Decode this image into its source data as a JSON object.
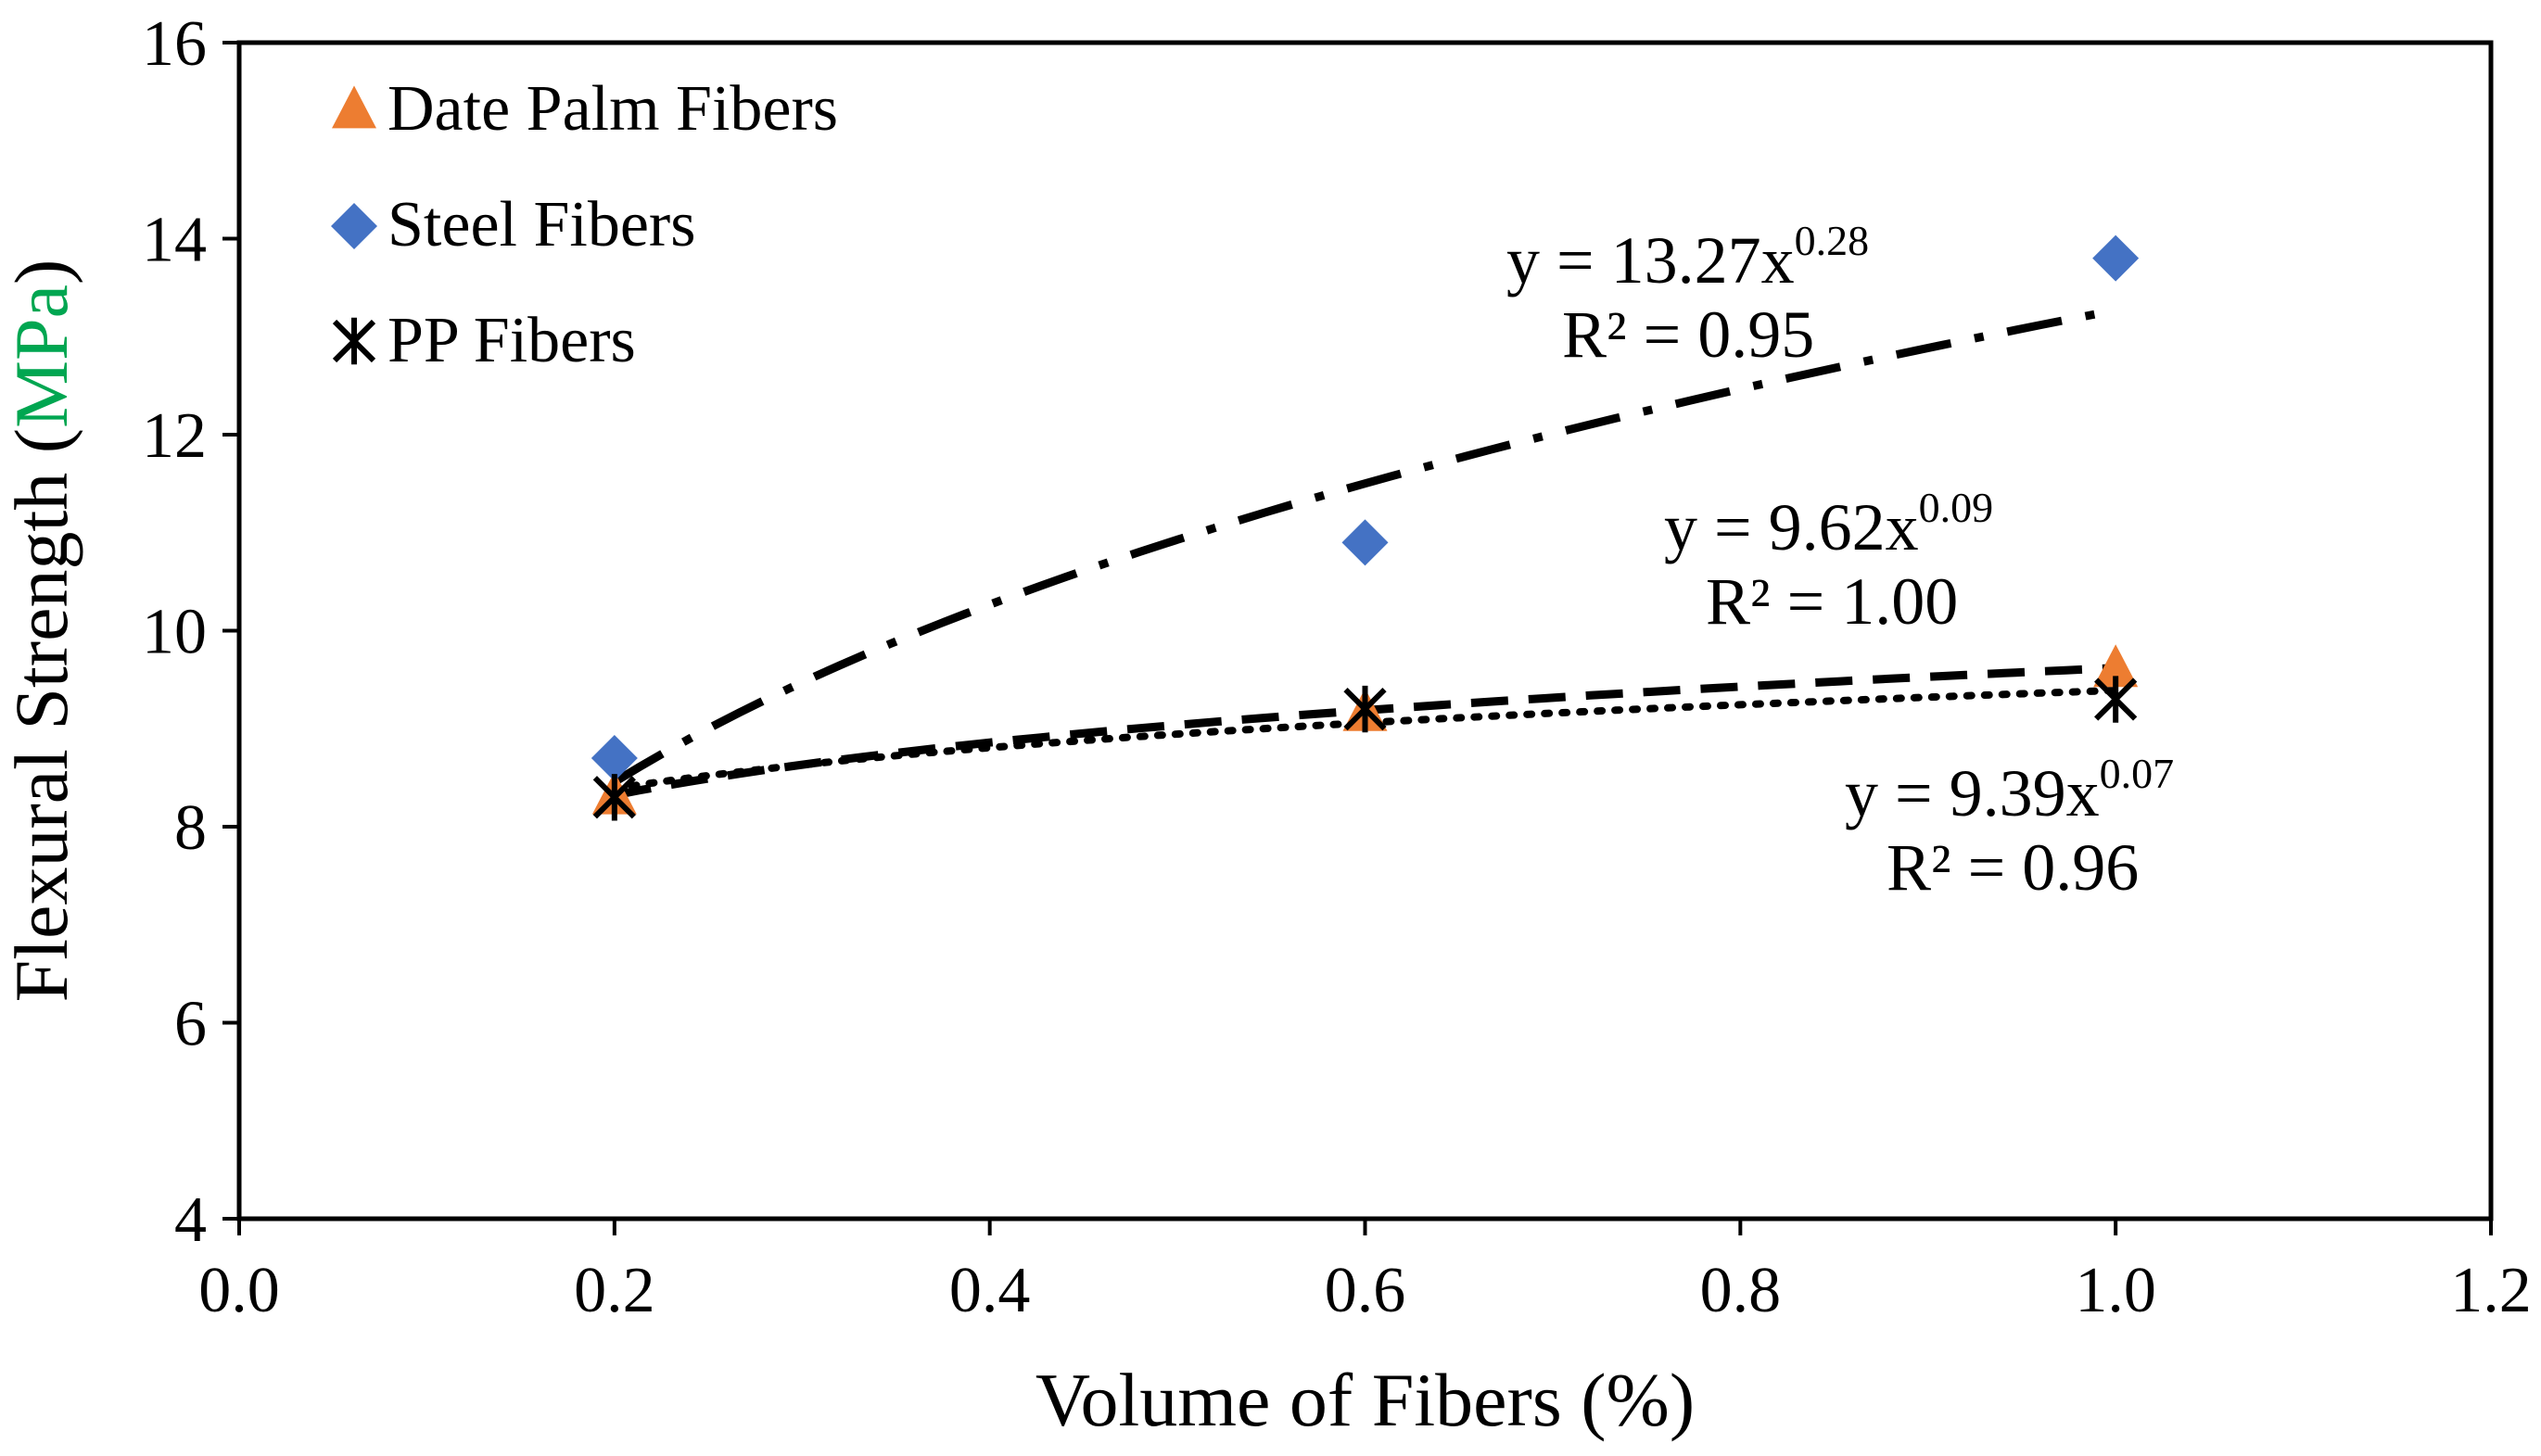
{
  "chart_data": {
    "type": "scatter",
    "xlabel": "Volume of Fibers (%)",
    "ylabel": {
      "prefix": "Flexural Strength (",
      "unit": "MPa",
      "suffix": ")"
    },
    "xlim": [
      0.0,
      1.2
    ],
    "ylim": [
      4,
      16
    ],
    "x_ticks": [
      "0.0",
      "0.2",
      "0.4",
      "0.6",
      "0.8",
      "1.0",
      "1.2"
    ],
    "y_ticks": [
      "4",
      "6",
      "8",
      "10",
      "12",
      "14",
      "16"
    ],
    "grid": false,
    "legend_position": "top-left",
    "series": [
      {
        "name": "Date Palm Fibers",
        "marker": "triangle",
        "color": "#ED7D31",
        "x": [
          0.2,
          0.6,
          1.0
        ],
        "y": [
          8.3,
          9.15,
          9.6
        ],
        "trend": {
          "a": 9.62,
          "b": 0.09,
          "style": "dashed",
          "equation": {
            "base": "y = 9.62x",
            "exp": "0.09"
          },
          "r2": "R² = 1.00"
        }
      },
      {
        "name": "Steel Fibers",
        "marker": "diamond",
        "color": "#4472C4",
        "x": [
          0.2,
          0.6,
          1.0
        ],
        "y": [
          8.7,
          10.9,
          13.8
        ],
        "trend": {
          "a": 13.27,
          "b": 0.28,
          "style": "dashdot",
          "equation": {
            "base": "y = 13.27x",
            "exp": "0.28"
          },
          "r2": "R² = 0.95"
        }
      },
      {
        "name": "PP Fibers",
        "marker": "asterisk",
        "color": "#000000",
        "x": [
          0.2,
          0.6,
          1.0
        ],
        "y": [
          8.3,
          9.2,
          9.3
        ],
        "trend": {
          "a": 9.39,
          "b": 0.07,
          "style": "dotted",
          "equation": {
            "base": "y = 9.39x",
            "exp": "0.07"
          },
          "r2": "R² = 0.96"
        }
      }
    ],
    "colors": {
      "unit_highlight": "#00A651"
    }
  }
}
